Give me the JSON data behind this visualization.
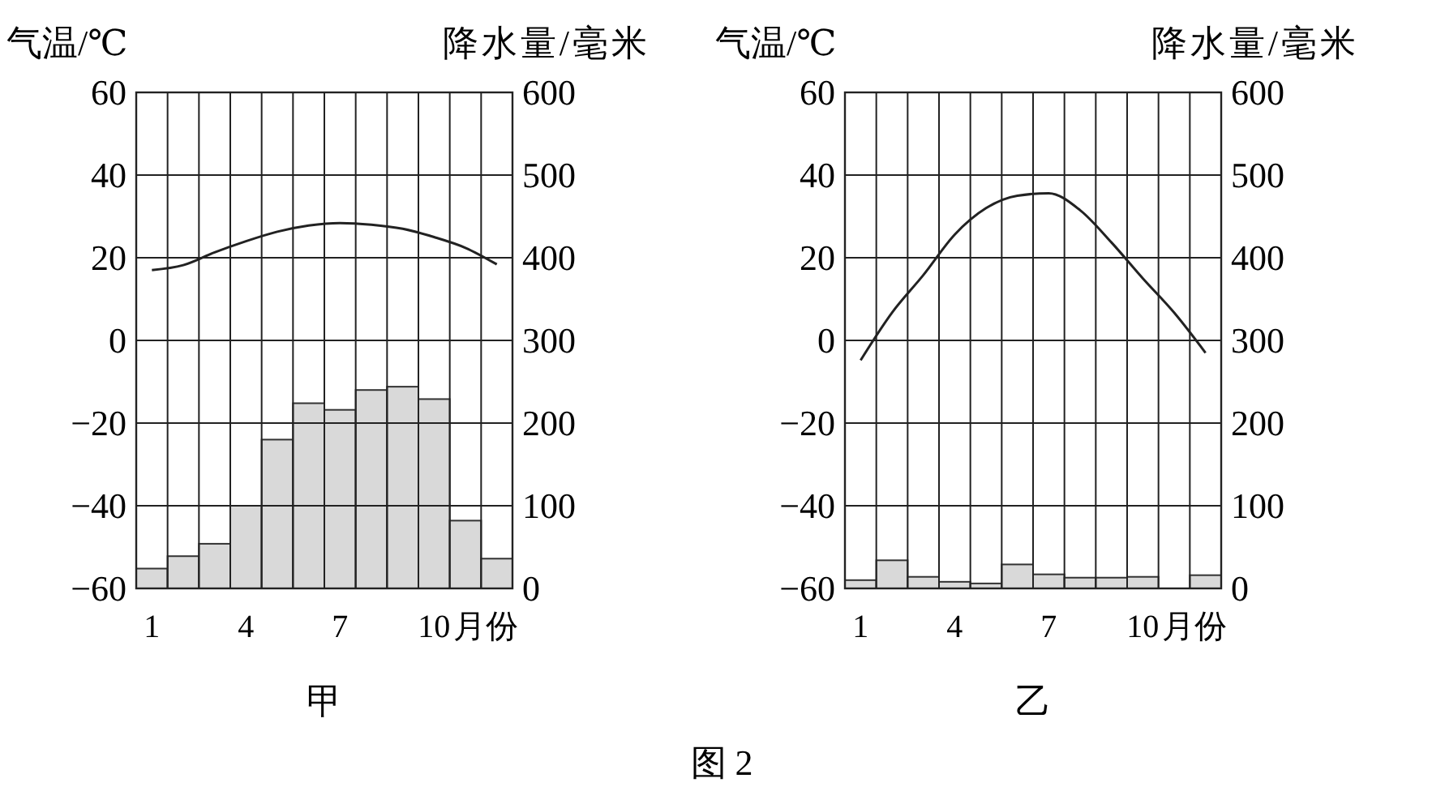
{
  "chart_data": [
    {
      "type": "bar",
      "title": "甲",
      "ylabel": "气温/℃",
      "y2label": "降水量/毫米",
      "xlabel": "月份",
      "categories": [
        "1",
        null,
        null,
        "4",
        null,
        null,
        "7",
        null,
        null,
        "10",
        null,
        null
      ],
      "ylim": [
        -60,
        60
      ],
      "yticks": [
        -60,
        -40,
        -20,
        0,
        20,
        40,
        60
      ],
      "y2lim": [
        0,
        600
      ],
      "y2ticks": [
        0,
        100,
        200,
        300,
        400,
        500,
        600
      ],
      "grid": true,
      "series": [
        {
          "type": "bar",
          "axis": "y2",
          "color": "#d9d9d9",
          "values": [
            24,
            39,
            54,
            100,
            180,
            224,
            216,
            240,
            244,
            229,
            82,
            36
          ]
        },
        {
          "type": "line",
          "color": "#222222",
          "values": [
            17,
            18.2,
            21.3,
            24,
            26.3,
            27.8,
            28.4,
            28,
            27,
            25,
            22.4,
            18.4
          ]
        }
      ]
    },
    {
      "type": "bar",
      "title": "乙",
      "ylabel": "气温/℃",
      "y2label": "降水量/毫米",
      "xlabel": "月份",
      "annotations": [
        "图 2"
      ],
      "categories": [
        "1",
        null,
        null,
        "4",
        null,
        null,
        "7",
        null,
        null,
        "10",
        null,
        null
      ],
      "ylim": [
        -60,
        60
      ],
      "yticks": [
        -60,
        -40,
        -20,
        0,
        20,
        40,
        60
      ],
      "y2lim": [
        0,
        600
      ],
      "y2ticks": [
        0,
        100,
        200,
        300,
        400,
        500,
        600
      ],
      "grid": true,
      "series": [
        {
          "type": "bar",
          "axis": "y2",
          "color": "#d9d9d9",
          "values": [
            10,
            34,
            14,
            8,
            6,
            29,
            17,
            13,
            13,
            14,
            0,
            16
          ]
        },
        {
          "type": "line",
          "color": "#222222",
          "values": [
            -4.8,
            6.7,
            15.8,
            25.6,
            32,
            35,
            35.6,
            31.5,
            23.7,
            15,
            6.7,
            -3
          ]
        }
      ]
    }
  ]
}
